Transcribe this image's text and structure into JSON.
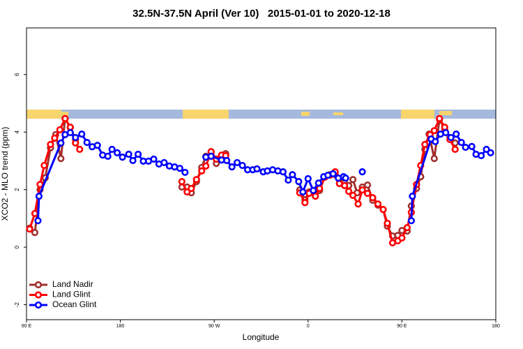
{
  "chart_data": {
    "type": "line",
    "title": "32.5N-37.5N April (Ver 10)   2015-01-01 to 2020-12-18",
    "x_label": "Longitude",
    "y_label": "XCO2 - MLO trend (ppm)",
    "xlim": [
      90,
      540
    ],
    "xticks": [
      {
        "value": 90,
        "label": "90 E"
      },
      {
        "value": 180,
        "label": "180"
      },
      {
        "value": 270,
        "label": "90 W"
      },
      {
        "value": 360,
        "label": "0"
      },
      {
        "value": 450,
        "label": "90 E"
      },
      {
        "value": 540,
        "label": "180"
      }
    ],
    "ylim": [
      -2.52,
      7.62
    ],
    "yticks": [
      -2,
      0,
      2,
      4,
      6
    ],
    "legend": "bottom-left",
    "series": [
      {
        "name": "Land Nadir",
        "color": "#a0302e",
        "x": [
          93,
          98,
          103,
          108,
          113,
          118,
          123,
          127,
          132,
          137,
          null,
          239,
          244,
          248,
          253,
          258,
          262,
          267,
          272,
          277,
          281,
          null,
          352,
          357,
          361,
          367,
          371,
          376,
          381,
          386,
          390,
          395,
          399,
          403,
          407,
          412,
          417,
          422,
          427,
          432,
          436,
          441,
          446,
          450,
          455,
          459,
          464,
          468,
          472,
          476,
          481,
          486,
          491,
          496,
          501
        ],
        "values": [
          0.66,
          0.51,
          2.0,
          2.41,
          3.45,
          3.91,
          3.08,
          4.47,
          4.15,
          3.74,
          null,
          2.09,
          2.09,
          1.89,
          2.28,
          2.77,
          3.16,
          3.25,
          2.91,
          3.13,
          3.25,
          null,
          1.99,
          1.65,
          1.92,
          1.84,
          1.97,
          2.43,
          2.52,
          2.52,
          2.33,
          2.23,
          2.14,
          2.35,
          1.89,
          2.09,
          2.16,
          1.63,
          1.46,
          1.31,
          0.73,
          0.39,
          0.41,
          0.58,
          0.56,
          1.43,
          2.04,
          2.45,
          3.4,
          3.93,
          3.08,
          4.44,
          4.1,
          3.81,
          3.62
        ]
      },
      {
        "name": "Land Glint",
        "color": "#ff0000",
        "x": [
          93,
          98,
          103,
          107,
          113,
          117,
          122,
          127,
          132,
          137,
          141,
          null,
          239,
          244,
          248,
          253,
          258,
          262,
          267,
          272,
          277,
          281,
          null,
          352,
          357,
          361,
          367,
          371,
          376,
          381,
          386,
          390,
          395,
          399,
          403,
          408,
          412,
          417,
          422,
          427,
          432,
          436,
          441,
          446,
          450,
          455,
          459,
          464,
          468,
          472,
          477,
          481,
          486,
          491,
          496,
          501
        ],
        "values": [
          0.63,
          1.17,
          2.18,
          2.84,
          3.57,
          3.79,
          4.08,
          4.47,
          4.17,
          3.62,
          3.4,
          null,
          2.28,
          1.92,
          2.04,
          2.35,
          2.65,
          2.82,
          3.32,
          3.06,
          3.2,
          3.18,
          null,
          1.89,
          1.55,
          1.87,
          1.77,
          2.04,
          2.43,
          2.5,
          2.62,
          2.21,
          2.14,
          1.94,
          1.8,
          1.5,
          1.99,
          1.87,
          1.72,
          1.5,
          1.31,
          0.83,
          0.15,
          0.22,
          0.32,
          0.68,
          1.21,
          2.18,
          2.84,
          3.57,
          3.91,
          4.05,
          4.47,
          4.17,
          3.74,
          3.4
        ]
      },
      {
        "name": "Ocean Glint",
        "color": "#0000ff",
        "x": [
          101,
          102,
          123,
          127,
          132,
          137,
          143,
          148,
          153,
          158,
          163,
          168,
          172,
          177,
          182,
          188,
          192,
          197,
          202,
          207,
          212,
          217,
          222,
          227,
          232,
          237,
          242,
          null,
          262,
          267,
          277,
          282,
          287,
          292,
          297,
          302,
          307,
          311,
          317,
          321,
          326,
          331,
          336,
          341,
          345,
          351,
          355,
          360,
          365,
          370,
          375,
          379,
          384,
          389,
          394,
          396,
          null,
          412,
          null,
          459,
          460,
          478,
          482,
          487,
          492,
          497,
          502,
          507,
          511,
          517,
          521,
          526,
          531,
          535
        ],
        "values": [
          0.92,
          1.77,
          3.62,
          3.91,
          3.98,
          3.81,
          3.93,
          3.64,
          3.49,
          3.54,
          3.2,
          3.16,
          3.4,
          3.28,
          3.13,
          3.23,
          3.01,
          3.23,
          2.99,
          2.99,
          3.06,
          2.89,
          2.94,
          2.82,
          2.79,
          2.74,
          2.6,
          null,
          3.13,
          3.16,
          3.03,
          3.01,
          2.79,
          2.94,
          2.84,
          2.69,
          2.69,
          2.72,
          2.62,
          2.65,
          2.69,
          2.65,
          2.62,
          2.33,
          2.52,
          2.28,
          1.92,
          2.38,
          1.97,
          2.23,
          2.45,
          2.5,
          2.55,
          2.4,
          2.45,
          2.4,
          null,
          2.62,
          null,
          0.92,
          1.77,
          3.76,
          3.67,
          3.93,
          3.98,
          3.81,
          3.93,
          3.64,
          3.47,
          3.5,
          3.23,
          3.18,
          3.4,
          3.28
        ]
      }
    ]
  }
}
